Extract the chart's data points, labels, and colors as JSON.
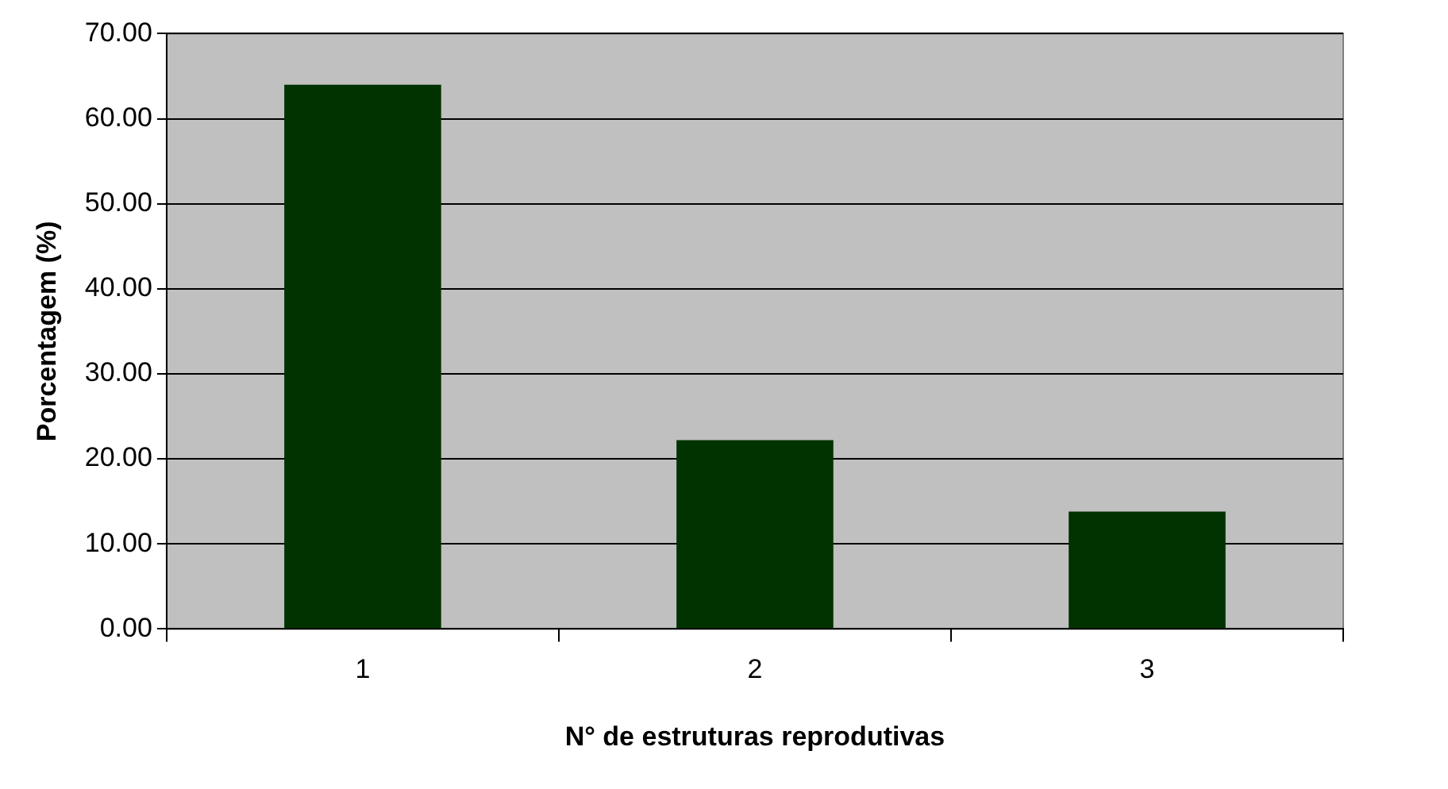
{
  "chart_data": {
    "type": "bar",
    "xlabel": "N° de estruturas reprodutivas",
    "ylabel": "Porcentagem (%)",
    "categories": [
      "1",
      "2",
      "3"
    ],
    "values": [
      64.0,
      22.2,
      13.8
    ],
    "color": "#003300",
    "ylim": [
      0,
      70
    ],
    "yticks": [
      {
        "value": 0,
        "label": "0.00"
      },
      {
        "value": 10,
        "label": "10.00"
      },
      {
        "value": 20,
        "label": "20.00"
      },
      {
        "value": 30,
        "label": "30.00"
      },
      {
        "value": 40,
        "label": "40.00"
      },
      {
        "value": 50,
        "label": "50.00"
      },
      {
        "value": 60,
        "label": "60.00"
      },
      {
        "value": 70,
        "label": "70.00"
      }
    ],
    "grid": "y",
    "legend": false
  }
}
